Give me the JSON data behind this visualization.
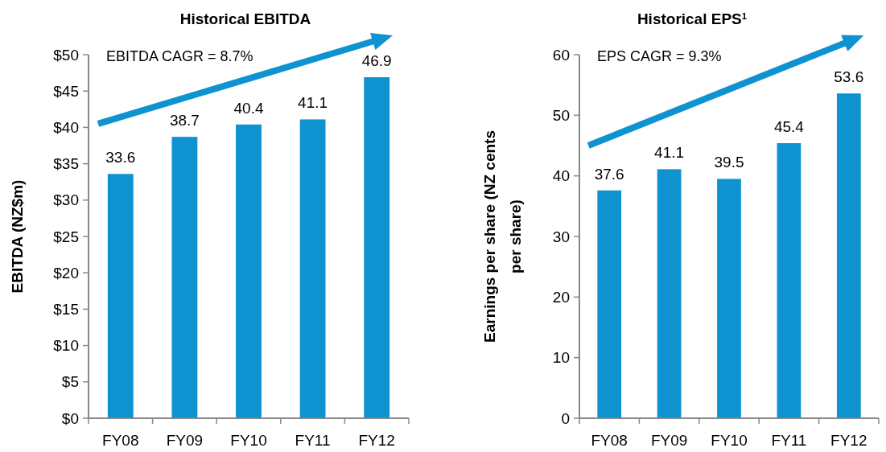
{
  "chart_data": [
    {
      "type": "bar",
      "title": "Historical EBITDA",
      "ylabel": "EBITDA  (NZ$m)",
      "annotations": [
        "EBITDA CAGR = 8.7%"
      ],
      "categories": [
        "FY08",
        "FY09",
        "FY10",
        "FY11",
        "FY12"
      ],
      "values": [
        33.6,
        38.7,
        40.4,
        41.1,
        46.9
      ],
      "color": "#0f92d0",
      "ylim": [
        0,
        50
      ],
      "yticks": [
        {
          "value": 0,
          "label": "$0"
        },
        {
          "value": 5,
          "label": "$5"
        },
        {
          "value": 10,
          "label": "$10"
        },
        {
          "value": 15,
          "label": "$15"
        },
        {
          "value": 20,
          "label": "$20"
        },
        {
          "value": 25,
          "label": "$25"
        },
        {
          "value": 30,
          "label": "$30"
        },
        {
          "value": 35,
          "label": "$35"
        },
        {
          "value": 40,
          "label": "$40"
        },
        {
          "value": 45,
          "label": "$45"
        },
        {
          "value": 50,
          "label": "$50"
        }
      ],
      "data_labels": true
    },
    {
      "type": "bar",
      "title": "Historical EPS$^{1}$",
      "ylabel": "Earnings per share (NZ cents per share)",
      "annotations": [
        "EPS CAGR = 9.3%"
      ],
      "categories": [
        "FY08",
        "FY09",
        "FY10",
        "FY11",
        "FY12"
      ],
      "values": [
        37.6,
        41.1,
        39.5,
        45.4,
        53.6
      ],
      "color": "#0f92d0",
      "ylim": [
        0,
        60
      ],
      "yticks": [
        0,
        10,
        20,
        30,
        40,
        50,
        60
      ],
      "data_labels": true
    }
  ]
}
